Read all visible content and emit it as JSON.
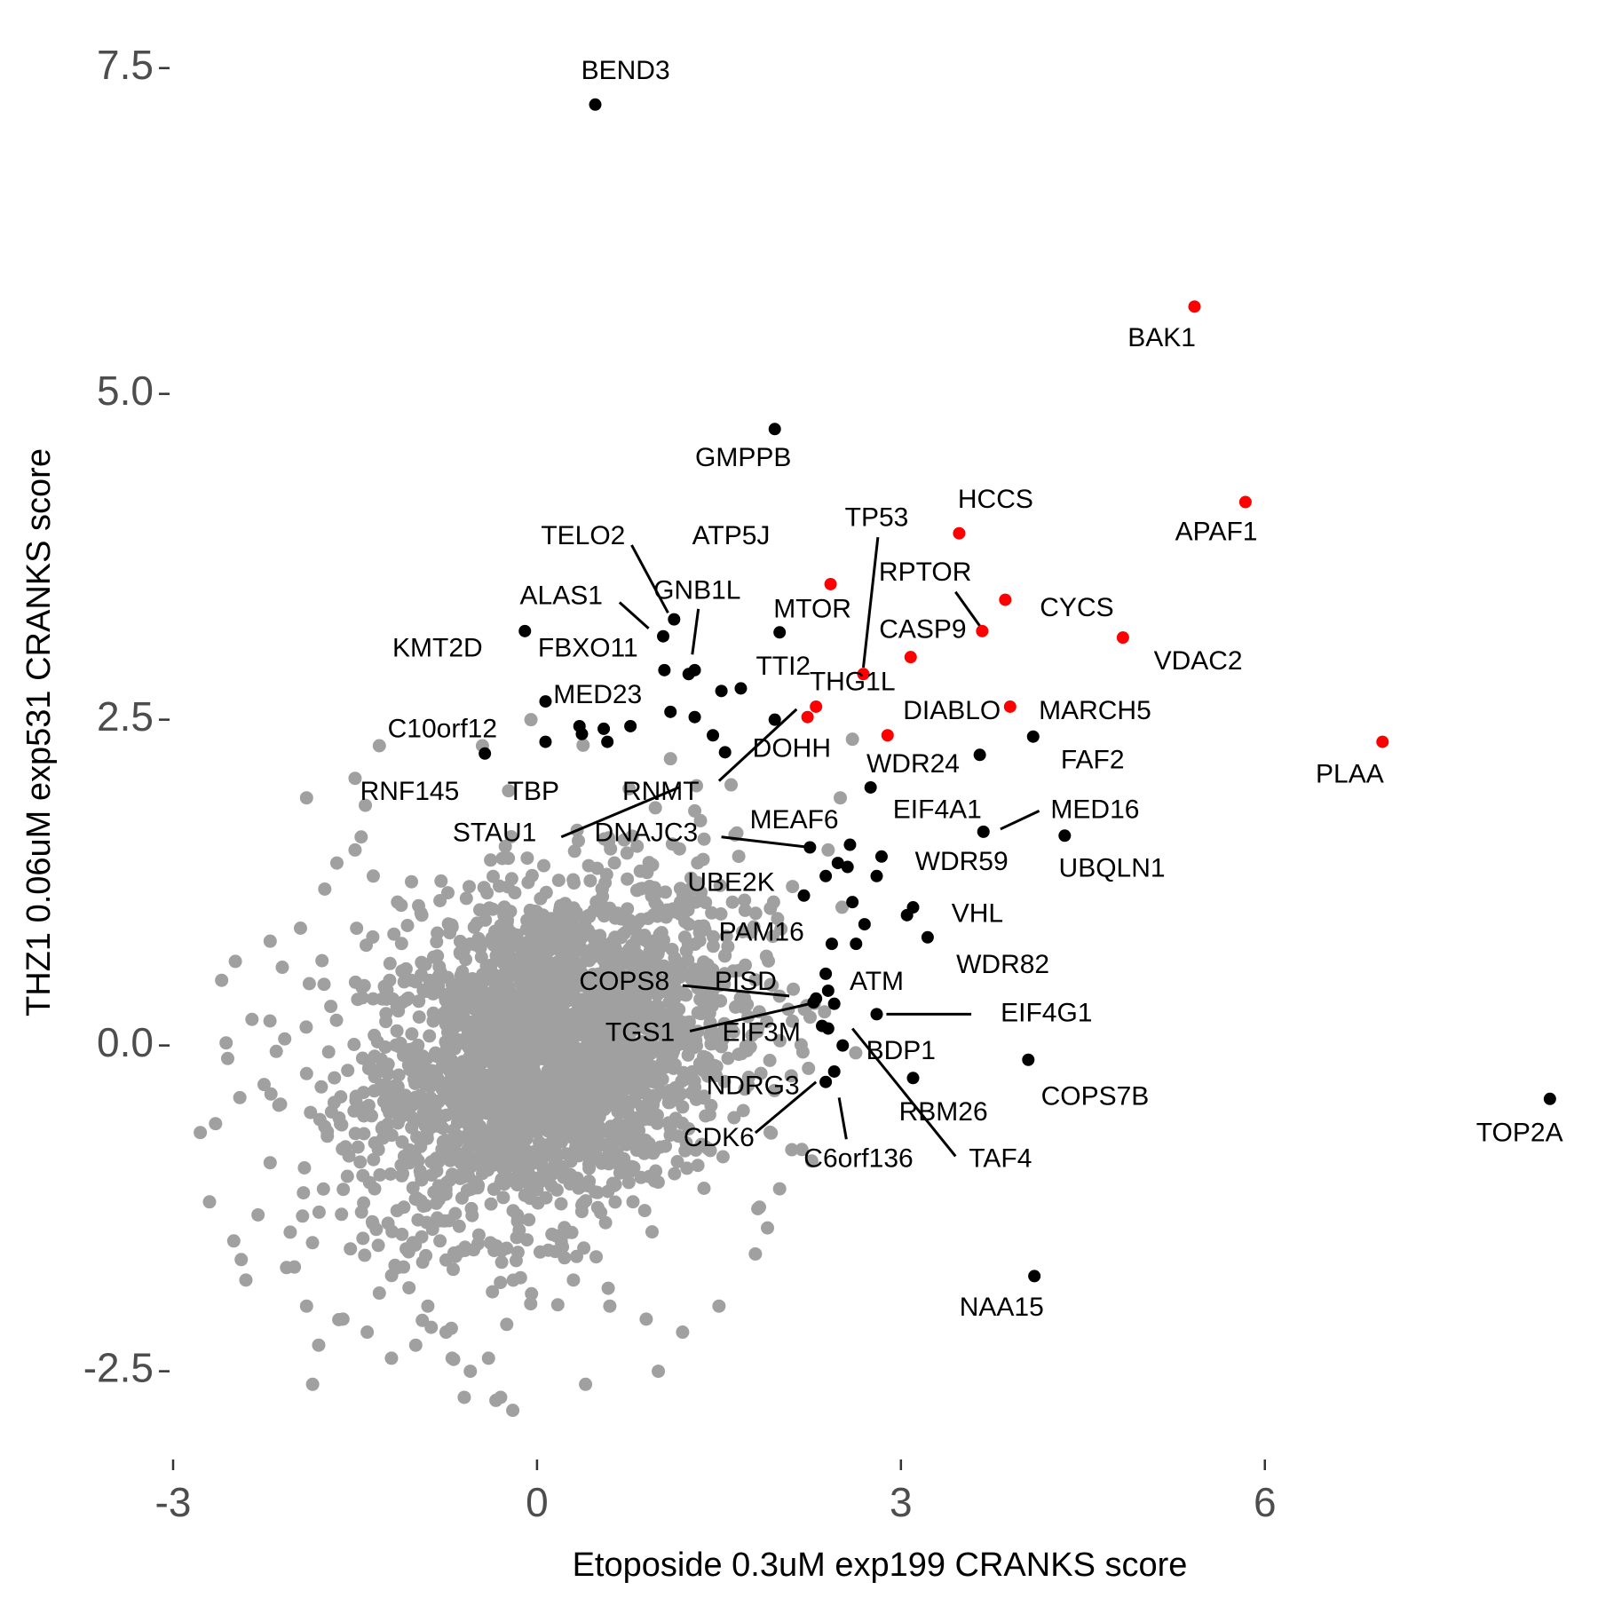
{
  "chart_data": {
    "type": "scatter",
    "title": "",
    "xlabel": "Etoposide 0.3uM exp199 CRANKS score",
    "ylabel": "THZ1 0.06uM exp531 CRANKS score",
    "xlim": [
      -3.0,
      8.6
    ],
    "ylim": [
      -3.15,
      7.75
    ],
    "x_ticks": [
      {
        "value": -3,
        "label": "-3"
      },
      {
        "value": 0,
        "label": "0"
      },
      {
        "value": 3,
        "label": "3"
      },
      {
        "value": 6,
        "label": "6"
      }
    ],
    "y_ticks": [
      {
        "value": 7.5,
        "label": "7.5"
      },
      {
        "value": 5.0,
        "label": "5.0"
      },
      {
        "value": 2.5,
        "label": "2.5"
      },
      {
        "value": 0.0,
        "label": "0.0"
      },
      {
        "value": -2.5,
        "label": "-2.5"
      }
    ],
    "grid": false,
    "legend": "none",
    "colors": {
      "background_points": "#a0a0a0",
      "highlight": "#000000",
      "apoptosis": "#ff0000"
    },
    "background_points": {
      "x": [
        -2.6,
        -2.65,
        -2.7,
        -2.5,
        -2.4,
        -2.3,
        -2.2,
        -2.0,
        -1.9,
        -1.8,
        -1.85,
        -2.1,
        -1.6,
        -1.4,
        -1.3,
        -1.2,
        -1.5,
        -1.0,
        -0.9,
        -0.7,
        -0.6,
        -2.35,
        -2.25,
        -1.95,
        -1.75,
        -1.65,
        -1.45,
        -1.35,
        -1.15,
        -0.95,
        -0.75,
        -0.55,
        0.4,
        1.0,
        1.2,
        1.5,
        1.8,
        1.9,
        2.0,
        2.1,
        1.7,
        2.6,
        2.5,
        2.4,
        1.95,
        1.6,
        1.3,
        -1.3,
        -1.5,
        -1.9,
        -2.2,
        -0.2,
        -0.4,
        0.9,
        0.6,
        0.3,
        -0.3,
        1.1,
        -1.1,
        -0.8,
        -2.45,
        -2.55,
        -1.7,
        -0.45,
        -0.05
      ],
      "y": [
        0.5,
        -0.6,
        -1.2,
        -1.5,
        -1.8,
        -1.3,
        -0.9,
        -1.7,
        -2.0,
        -2.3,
        -2.6,
        0.6,
        -2.1,
        -2.2,
        -1.9,
        -2.4,
        1.5,
        -2.3,
        -2.0,
        -2.4,
        -2.7,
        0.2,
        -0.3,
        0.9,
        1.2,
        1.4,
        1.6,
        1.3,
        1.1,
        1.0,
        -2.2,
        -2.5,
        -2.6,
        -2.5,
        -2.2,
        -2.0,
        -1.6,
        -1.4,
        -1.1,
        -0.8,
        -0.5,
        2.35,
        1.9,
        1.5,
        1.1,
        2.0,
        1.8,
        2.3,
        2.05,
        1.9,
        0.8,
        -2.8,
        -2.4,
        -2.1,
        -2.0,
        -1.8,
        -2.7,
        2.2,
        -1.7,
        -1.5,
        -0.4,
        -0.1,
        0.3,
        2.3,
        2.5
      ]
    },
    "cloud": {
      "center_x": 0.1,
      "center_y": -0.05,
      "spread_x": 0.9,
      "spread_y": 0.75
    },
    "highlighted_points": [
      {
        "name": "BEND3",
        "x": 0.48,
        "y": 7.22,
        "color": "#000000"
      },
      {
        "name": "BAK1",
        "x": 5.42,
        "y": 5.67,
        "color": "#ff0000"
      },
      {
        "name": "GMPPB",
        "x": 1.96,
        "y": 4.73,
        "color": "#000000"
      },
      {
        "name": "APAF1",
        "x": 5.84,
        "y": 4.17,
        "color": "#ff0000"
      },
      {
        "name": "HCCS",
        "x": 3.48,
        "y": 3.93,
        "color": "#ff0000"
      },
      {
        "name": "ATP5J",
        "x": 2.42,
        "y": 3.54,
        "color": "#ff0000"
      },
      {
        "name": "CYCS",
        "x": 3.86,
        "y": 3.42,
        "color": "#ff0000"
      },
      {
        "name": "RPTOR",
        "x": 3.67,
        "y": 3.18,
        "color": "#ff0000"
      },
      {
        "name": "VDAC2",
        "x": 4.83,
        "y": 3.13,
        "color": "#ff0000"
      },
      {
        "name": "MTOR",
        "x": 2.0,
        "y": 3.17,
        "color": "#000000"
      },
      {
        "name": "KMT2D",
        "x": -0.1,
        "y": 3.18,
        "color": "#000000"
      },
      {
        "name": "FBXO11",
        "x": 1.04,
        "y": 3.14,
        "color": "#000000"
      },
      {
        "name": "GNB1L",
        "x": 1.13,
        "y": 3.27,
        "color": "#000000"
      },
      {
        "name": "CASP9",
        "x": 3.08,
        "y": 2.98,
        "color": "#ff0000"
      },
      {
        "name": "THG1L",
        "x": 2.69,
        "y": 2.85,
        "color": "#ff0000"
      },
      {
        "name": "TTI2",
        "x": 1.25,
        "y": 2.85,
        "color": "#000000"
      },
      {
        "name": "MED23",
        "x": 0.07,
        "y": 2.64,
        "color": "#000000"
      },
      {
        "name": "DIABLO",
        "x": 2.89,
        "y": 2.38,
        "color": "#ff0000"
      },
      {
        "name": "MARCH5",
        "x": 3.9,
        "y": 2.6,
        "color": "#ff0000"
      },
      {
        "name": "PLAA",
        "x": 6.97,
        "y": 2.33,
        "color": "#ff0000"
      },
      {
        "name": "FAF2",
        "x": 4.09,
        "y": 2.37,
        "color": "#000000"
      },
      {
        "name": "C10orf12",
        "x": -0.43,
        "y": 2.24,
        "color": "#000000"
      },
      {
        "name": "DOHH",
        "x": 2.3,
        "y": 2.6,
        "color": "#ff0000"
      },
      {
        "name": "WDR24",
        "x": 3.65,
        "y": 2.23,
        "color": "#000000"
      },
      {
        "name": "RNMT",
        "x": 2.23,
        "y": 2.52,
        "color": "#ff0000"
      },
      {
        "name": "EIF4A1",
        "x": 2.75,
        "y": 1.98,
        "color": "#000000"
      },
      {
        "name": "MED16",
        "x": 3.68,
        "y": 1.64,
        "color": "#000000"
      },
      {
        "name": "UBQLN1",
        "x": 4.35,
        "y": 1.61,
        "color": "#000000"
      },
      {
        "name": "MEAF6",
        "x": 2.58,
        "y": 1.54,
        "color": "#000000"
      },
      {
        "name": "DNAJC3",
        "x": 2.25,
        "y": 1.52,
        "color": "#000000"
      },
      {
        "name": "WDR59",
        "x": 2.84,
        "y": 1.45,
        "color": "#000000"
      },
      {
        "name": "UBE2K",
        "x": 2.2,
        "y": 1.15,
        "color": "#000000"
      },
      {
        "name": "VHL",
        "x": 3.1,
        "y": 1.06,
        "color": "#000000"
      },
      {
        "name": "PAM16",
        "x": 2.43,
        "y": 0.78,
        "color": "#000000"
      },
      {
        "name": "WDR82",
        "x": 3.22,
        "y": 0.83,
        "color": "#000000"
      },
      {
        "name": "ATM",
        "x": 2.38,
        "y": 0.55,
        "color": "#000000"
      },
      {
        "name": "PISD",
        "x": 2.3,
        "y": 0.36,
        "color": "#000000"
      },
      {
        "name": "EIF4G1",
        "x": 2.8,
        "y": 0.24,
        "color": "#000000"
      },
      {
        "name": "TGS1",
        "x": 2.28,
        "y": 0.33,
        "color": "#000000"
      },
      {
        "name": "EIF3M",
        "x": 2.4,
        "y": 0.13,
        "color": "#000000"
      },
      {
        "name": "BDP1",
        "x": 2.52,
        "y": 0.0,
        "color": "#000000"
      },
      {
        "name": "COPS7B",
        "x": 4.05,
        "y": -0.11,
        "color": "#000000"
      },
      {
        "name": "NDRG3",
        "x": 2.45,
        "y": -0.2,
        "color": "#000000"
      },
      {
        "name": "RBM26",
        "x": 3.1,
        "y": -0.25,
        "color": "#000000"
      },
      {
        "name": "TOP2A",
        "x": 8.35,
        "y": -0.41,
        "color": "#000000"
      },
      {
        "name": "NAA15",
        "x": 4.1,
        "y": -1.77,
        "color": "#000000"
      }
    ],
    "unlabeled_points": [
      {
        "x": 1.05,
        "y": 2.88
      },
      {
        "x": 1.3,
        "y": 2.88
      },
      {
        "x": 1.52,
        "y": 2.72
      },
      {
        "x": 1.68,
        "y": 2.74
      },
      {
        "x": 1.96,
        "y": 2.5
      },
      {
        "x": 0.35,
        "y": 2.45
      },
      {
        "x": 0.55,
        "y": 2.43
      },
      {
        "x": 0.77,
        "y": 2.45
      },
      {
        "x": 0.37,
        "y": 2.39
      },
      {
        "x": 0.58,
        "y": 2.33
      },
      {
        "x": 0.07,
        "y": 2.33
      },
      {
        "x": 1.1,
        "y": 2.56
      },
      {
        "x": 1.3,
        "y": 2.52
      },
      {
        "x": 1.45,
        "y": 2.38
      },
      {
        "x": 1.55,
        "y": 2.25
      },
      {
        "x": 2.48,
        "y": 1.4
      },
      {
        "x": 2.56,
        "y": 1.37
      },
      {
        "x": 2.38,
        "y": 1.3
      },
      {
        "x": 2.8,
        "y": 1.3
      },
      {
        "x": 2.6,
        "y": 1.1
      },
      {
        "x": 2.7,
        "y": 0.93
      },
      {
        "x": 3.05,
        "y": 1.0
      },
      {
        "x": 2.63,
        "y": 0.78
      },
      {
        "x": 2.4,
        "y": 0.42
      },
      {
        "x": 2.45,
        "y": 0.32
      },
      {
        "x": 2.35,
        "y": 0.15
      },
      {
        "x": 2.38,
        "y": -0.28
      }
    ],
    "labels": [
      {
        "name": "BEND3",
        "text": "BEND3",
        "lx": 0.73,
        "ly": 7.47
      },
      {
        "name": "BAK1",
        "text": "BAK1",
        "lx": 5.15,
        "ly": 5.42
      },
      {
        "name": "GMPPB",
        "text": "GMPPB",
        "lx": 1.7,
        "ly": 4.5
      },
      {
        "name": "APAF1",
        "text": "APAF1",
        "lx": 5.6,
        "ly": 3.93
      },
      {
        "name": "HCCS",
        "text": "HCCS",
        "lx": 3.78,
        "ly": 4.18
      },
      {
        "name": "TP53",
        "text": "TP53",
        "lx": 2.8,
        "ly": 4.04,
        "line": [
          2.81,
          3.9,
          2.69,
          2.9
        ]
      },
      {
        "name": "TELO2",
        "text": "TELO2",
        "lx": 0.38,
        "ly": 3.9,
        "line": [
          0.78,
          3.84,
          1.08,
          3.32
        ]
      },
      {
        "name": "ATP5J",
        "text": "ATP5J",
        "lx": 1.6,
        "ly": 3.9
      },
      {
        "name": "RPTOR",
        "text": "RPTOR",
        "lx": 3.2,
        "ly": 3.62,
        "line": [
          3.45,
          3.48,
          3.65,
          3.22
        ]
      },
      {
        "name": "ALAS1",
        "text": "ALAS1",
        "lx": 0.2,
        "ly": 3.44,
        "line": [
          0.68,
          3.4,
          0.92,
          3.2
        ]
      },
      {
        "name": "GNB1L",
        "text": "GNB1L",
        "lx": 1.32,
        "ly": 3.48,
        "line": [
          1.33,
          3.35,
          1.28,
          3.0
        ]
      },
      {
        "name": "CYCS",
        "text": "CYCS",
        "lx": 4.45,
        "ly": 3.35
      },
      {
        "name": "MTOR",
        "text": "MTOR",
        "lx": 2.27,
        "ly": 3.34
      },
      {
        "name": "CASP9",
        "text": "CASP9",
        "lx": 3.18,
        "ly": 3.18
      },
      {
        "name": "KMT2D",
        "text": "KMT2D",
        "lx": -0.82,
        "ly": 3.04
      },
      {
        "name": "FBXO11",
        "text": "FBXO11",
        "lx": 0.42,
        "ly": 3.04
      },
      {
        "name": "VDAC2",
        "text": "VDAC2",
        "lx": 5.45,
        "ly": 2.94
      },
      {
        "name": "TTI2",
        "text": "TTI2",
        "lx": 2.03,
        "ly": 2.9
      },
      {
        "name": "THG1L",
        "text": "THG1L",
        "lx": 2.6,
        "ly": 2.78
      },
      {
        "name": "MED23",
        "text": "MED23",
        "lx": 0.5,
        "ly": 2.68
      },
      {
        "name": "DIABLO",
        "text": "DIABLO",
        "lx": 3.42,
        "ly": 2.56
      },
      {
        "name": "MARCH5",
        "text": "MARCH5",
        "lx": 4.6,
        "ly": 2.56
      },
      {
        "name": "C10orf12",
        "text": "C10orf12",
        "lx": -0.78,
        "ly": 2.42
      },
      {
        "name": "DOHH",
        "text": "DOHH",
        "lx": 2.1,
        "ly": 2.27,
        "line": [
          2.14,
          2.58,
          1.5,
          2.03
        ]
      },
      {
        "name": "FAF2",
        "text": "FAF2",
        "lx": 4.58,
        "ly": 2.18
      },
      {
        "name": "WDR24",
        "text": "WDR24",
        "lx": 3.1,
        "ly": 2.15
      },
      {
        "name": "PLAA",
        "text": "PLAA",
        "lx": 6.7,
        "ly": 2.07
      },
      {
        "name": "RNF145",
        "text": "RNF145",
        "lx": -1.05,
        "ly": 1.94
      },
      {
        "name": "TBP",
        "text": "TBP",
        "lx": -0.03,
        "ly": 1.94
      },
      {
        "name": "RNMT",
        "text": "RNMT",
        "lx": 1.02,
        "ly": 1.94
      },
      {
        "name": "EIF4A1",
        "text": "EIF4A1",
        "lx": 3.3,
        "ly": 1.8
      },
      {
        "name": "MED16",
        "text": "MED16",
        "lx": 4.6,
        "ly": 1.8,
        "line": [
          4.14,
          1.8,
          3.82,
          1.66
        ]
      },
      {
        "name": "MEAF6",
        "text": "MEAF6",
        "lx": 2.12,
        "ly": 1.72
      },
      {
        "name": "STAU1",
        "text": "STAU1",
        "lx": -0.35,
        "ly": 1.62,
        "line": [
          0.2,
          1.6,
          1.17,
          1.98
        ]
      },
      {
        "name": "DNAJC3",
        "text": "DNAJC3",
        "lx": 0.9,
        "ly": 1.62,
        "line": [
          1.52,
          1.6,
          2.25,
          1.52
        ]
      },
      {
        "name": "WDR59",
        "text": "WDR59",
        "lx": 3.5,
        "ly": 1.4
      },
      {
        "name": "UBQLN1",
        "text": "UBQLN1",
        "lx": 4.74,
        "ly": 1.35
      },
      {
        "name": "UBE2K",
        "text": "UBE2K",
        "lx": 1.6,
        "ly": 1.24
      },
      {
        "name": "VHL",
        "text": "VHL",
        "lx": 3.63,
        "ly": 1.0
      },
      {
        "name": "PAM16",
        "text": "PAM16",
        "lx": 1.85,
        "ly": 0.86
      },
      {
        "name": "WDR82",
        "text": "WDR82",
        "lx": 3.84,
        "ly": 0.61
      },
      {
        "name": "ATM",
        "text": "ATM",
        "lx": 2.8,
        "ly": 0.48
      },
      {
        "name": "COPS8",
        "text": "COPS8",
        "lx": 0.72,
        "ly": 0.48,
        "line": [
          1.2,
          0.46,
          2.08,
          0.38
        ]
      },
      {
        "name": "PISD",
        "text": "PISD",
        "lx": 1.72,
        "ly": 0.48
      },
      {
        "name": "EIF4G1",
        "text": "EIF4G1",
        "lx": 4.2,
        "ly": 0.24,
        "line": [
          3.58,
          0.24,
          2.88,
          0.24
        ]
      },
      {
        "name": "TGS1",
        "text": "TGS1",
        "lx": 0.85,
        "ly": 0.09,
        "line": [
          1.26,
          0.11,
          2.25,
          0.32
        ]
      },
      {
        "name": "EIF3M",
        "text": "EIF3M",
        "lx": 1.85,
        "ly": 0.09
      },
      {
        "name": "BDP1",
        "text": "BDP1",
        "lx": 3.0,
        "ly": -0.05
      },
      {
        "name": "NDRG3",
        "text": "NDRG3",
        "lx": 1.78,
        "ly": -0.32
      },
      {
        "name": "COPS7B",
        "text": "COPS7B",
        "lx": 4.6,
        "ly": -0.4
      },
      {
        "name": "RBM26",
        "text": "RBM26",
        "lx": 3.35,
        "ly": -0.52
      },
      {
        "name": "TOP2A",
        "text": "TOP2A",
        "lx": 8.1,
        "ly": -0.68
      },
      {
        "name": "CDK6",
        "text": "CDK6",
        "lx": 1.5,
        "ly": -0.72,
        "line": [
          1.8,
          -0.67,
          2.3,
          -0.28
        ]
      },
      {
        "name": "C6orf136",
        "text": "C6orf136",
        "lx": 2.65,
        "ly": -0.88,
        "line": [
          2.55,
          -0.72,
          2.49,
          -0.4
        ]
      },
      {
        "name": "TAF4",
        "text": "TAF4",
        "lx": 3.82,
        "ly": -0.88,
        "line": [
          3.45,
          -0.85,
          2.6,
          0.13
        ]
      },
      {
        "name": "NAA15",
        "text": "NAA15",
        "lx": 3.83,
        "ly": -2.02
      }
    ]
  }
}
